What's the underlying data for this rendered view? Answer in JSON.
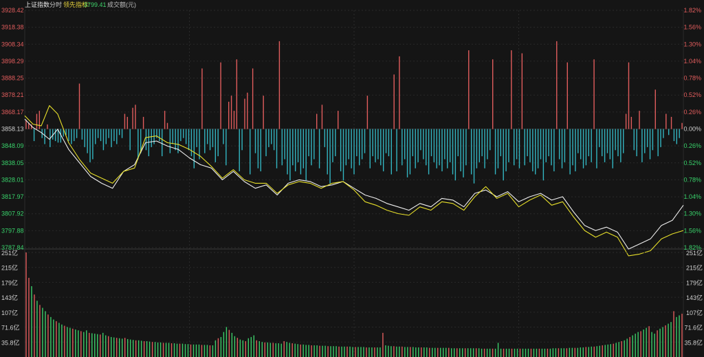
{
  "header": {
    "title": "上证指数",
    "mode": "分时",
    "lead_label": "领先指标:",
    "lead_value": "3799.41",
    "volume_label": "成交额(元)"
  },
  "colors": {
    "background": "#151515",
    "grid": "#2a2a2a",
    "up": "#e25d5d",
    "down": "#33b6c2",
    "index_line": "#f0f0f0",
    "lead_line": "#e8e02a",
    "up_label": "#e25d5d",
    "down_label": "#39d36b"
  },
  "chart_data": [
    {
      "type": "line",
      "name": "price",
      "y_left_ticks": [
        "3928.42",
        "3918.38",
        "3908.34",
        "3898.29",
        "3888.25",
        "3878.21",
        "3868.17",
        "3858.13",
        "3848.09",
        "3838.05",
        "3828.01",
        "3817.97",
        "3807.92",
        "3797.88",
        "3787.84"
      ],
      "y_right_ticks": [
        "1.82%",
        "1.56%",
        "1.30%",
        "1.04%",
        "0.78%",
        "0.52%",
        "0.26%",
        "0.00%",
        "0.26%",
        "0.52%",
        "0.78%",
        "1.04%",
        "1.30%",
        "1.56%",
        "1.82%"
      ],
      "ylim": [
        3787.84,
        3928.42
      ],
      "baseline": 3858.13,
      "series": [
        {
          "key": "index",
          "x": [
            0,
            3,
            6,
            9,
            12,
            16,
            20,
            24,
            28,
            32,
            36,
            40,
            44,
            48,
            52,
            56,
            60,
            64,
            68,
            72,
            76,
            80,
            84,
            88,
            92,
            96,
            100,
            104,
            108,
            112,
            116,
            120,
            124,
            128,
            132,
            136,
            140,
            144,
            148,
            152,
            156,
            160,
            164,
            168,
            172,
            176,
            180,
            184,
            188,
            192,
            196,
            200,
            204,
            208,
            212,
            216,
            220,
            224,
            228,
            232,
            236,
            240
          ],
          "values": [
            3864,
            3859,
            3856,
            3852,
            3858,
            3846,
            3838,
            3830,
            3826,
            3823,
            3833,
            3837,
            3850,
            3851,
            3848,
            3846,
            3841,
            3837,
            3835,
            3828,
            3833,
            3827,
            3823,
            3825,
            3819,
            3826,
            3828,
            3827,
            3824,
            3825,
            3827,
            3823,
            3819,
            3817,
            3814,
            3812,
            3810,
            3814,
            3812,
            3817,
            3816,
            3812,
            3820,
            3822,
            3818,
            3821,
            3815,
            3818,
            3820,
            3816,
            3818,
            3809,
            3801,
            3798,
            3800,
            3797,
            3787,
            3790,
            3793,
            3801,
            3804,
            3813
          ]
        },
        {
          "key": "lead",
          "x": [
            0,
            3,
            6,
            9,
            12,
            16,
            20,
            24,
            28,
            32,
            36,
            40,
            44,
            48,
            52,
            56,
            60,
            64,
            68,
            72,
            76,
            80,
            84,
            88,
            92,
            96,
            100,
            104,
            108,
            112,
            116,
            120,
            124,
            128,
            132,
            136,
            140,
            144,
            148,
            152,
            156,
            160,
            164,
            168,
            172,
            176,
            180,
            184,
            188,
            192,
            196,
            200,
            204,
            208,
            212,
            216,
            220,
            224,
            228,
            232,
            236,
            240
          ],
          "values": [
            3866,
            3861,
            3860,
            3872,
            3867,
            3850,
            3840,
            3832,
            3829,
            3826,
            3833,
            3835,
            3853,
            3854,
            3850,
            3849,
            3846,
            3842,
            3836,
            3829,
            3834,
            3828,
            3826,
            3826,
            3820,
            3825,
            3827,
            3826,
            3823,
            3826,
            3827,
            3822,
            3815,
            3813,
            3810,
            3808,
            3807,
            3812,
            3810,
            3815,
            3814,
            3810,
            3818,
            3824,
            3817,
            3820,
            3812,
            3816,
            3819,
            3813,
            3815,
            3806,
            3798,
            3794,
            3797,
            3794,
            3783,
            3784,
            3786,
            3793,
            3796,
            3798
          ]
        }
      ],
      "bars": [
        6,
        4,
        3,
        -8,
        10,
        12,
        -6,
        -10,
        3,
        -12,
        -7,
        -8,
        -9,
        -9,
        -5,
        -4,
        -8,
        -10,
        -8,
        -6,
        -11,
        -7,
        -12,
        -16,
        -22,
        -20,
        -10,
        -6,
        -8,
        -14,
        -10,
        -6,
        -12,
        -8,
        -10,
        -4,
        -6,
        10,
        8,
        -14,
        14,
        16,
        -20,
        -16,
        8,
        -14,
        -18,
        -12,
        -10,
        -6,
        -8,
        -18,
        12,
        4,
        -16,
        -10,
        -14,
        -16,
        -8,
        -6,
        -10,
        -14,
        -18,
        -26,
        -12,
        -20,
        -22,
        -16,
        -10,
        -14,
        -12,
        -22,
        -18,
        -14,
        -10,
        -24,
        18,
        22,
        12,
        -24,
        -28,
        -14,
        20,
        24,
        -30,
        -18,
        -16,
        -26,
        -28,
        22,
        -18,
        -12,
        -10,
        -14,
        -26,
        -16,
        -24,
        -20,
        -30,
        -34,
        -24,
        -28,
        -22,
        -30,
        -26,
        -34,
        -18,
        -24,
        -20,
        10,
        -26,
        16,
        -12,
        -30,
        -36,
        -22,
        -18,
        12,
        -28,
        -34,
        -24,
        -20,
        -26,
        -30,
        -18,
        -24,
        -20,
        -16,
        22,
        -26,
        -18,
        -22,
        -20,
        -24,
        -28,
        -16,
        -18,
        -30,
        36,
        -28,
        -22,
        -24,
        -20,
        -32,
        -30,
        -18,
        -26,
        -22,
        -14,
        -20,
        -24,
        -30,
        -18,
        -22,
        -26,
        -24,
        -28,
        -20,
        -26,
        -22,
        -30,
        -34,
        -18,
        -28,
        -32,
        -24,
        -40,
        -30,
        -36,
        -26,
        -22,
        -18,
        -26,
        -20,
        -14,
        -22,
        -30,
        -26,
        -18,
        -34,
        -28,
        -22,
        -30,
        -24,
        -20,
        -26,
        -32,
        -24,
        -18,
        -22,
        -28,
        -30,
        -26,
        -20,
        -34,
        -22,
        -18,
        -24,
        -28,
        -16,
        -20,
        -26,
        -22,
        -18,
        -30,
        -24,
        -28,
        -16,
        -20,
        -26,
        -24,
        -18,
        -22,
        -20,
        -26,
        -12,
        -18,
        -22,
        -16,
        -20,
        -26,
        -14,
        -18,
        -22,
        -16,
        10,
        -20,
        8,
        -14,
        -18,
        12,
        -22,
        -16,
        -12,
        -20,
        -14,
        8,
        -18,
        -12,
        -6,
        10,
        -4,
        8,
        -8,
        -10,
        -6,
        4
      ],
      "bar_overrides": {
        "up_peaks": [
          [
            20,
            30
          ],
          [
            66,
            40
          ],
          [
            73,
            44
          ],
          [
            79,
            46
          ],
          [
            85,
            40
          ],
          [
            95,
            58
          ],
          [
            140,
            48
          ],
          [
            166,
            52
          ],
          [
            175,
            46
          ],
          [
            182,
            52
          ],
          [
            186,
            50
          ],
          [
            199,
            58
          ],
          [
            203,
            44
          ],
          [
            213,
            46
          ],
          [
            226,
            44
          ],
          [
            236,
            26
          ]
        ]
      }
    },
    {
      "type": "bar",
      "name": "volume",
      "y_ticks": [
        "251亿",
        "215亿",
        "179亿",
        "143亿",
        "107亿",
        "71.6亿",
        "35.8亿"
      ],
      "ylim": [
        0,
        251
      ],
      "values": [
        251,
        190,
        170,
        150,
        135,
        125,
        118,
        110,
        102,
        96,
        90,
        86,
        82,
        78,
        75,
        72,
        70,
        68,
        66,
        64,
        62,
        60,
        64,
        58,
        57,
        56,
        55,
        54,
        58,
        52,
        50,
        48,
        47,
        46,
        45,
        44,
        46,
        43,
        42,
        41,
        40,
        40,
        39,
        38,
        38,
        37,
        36,
        36,
        35,
        35,
        34,
        34,
        34,
        33,
        33,
        32,
        32,
        32,
        31,
        31,
        30,
        30,
        30,
        30,
        29,
        29,
        29,
        28,
        28,
        40,
        45,
        48,
        60,
        72,
        65,
        58,
        50,
        46,
        42,
        40,
        38,
        45,
        48,
        52,
        40,
        38,
        36,
        35,
        35,
        34,
        34,
        33,
        33,
        32,
        38,
        36,
        34,
        33,
        32,
        31,
        30,
        30,
        29,
        29,
        28,
        28,
        28,
        27,
        27,
        27,
        26,
        26,
        26,
        26,
        25,
        25,
        25,
        25,
        25,
        24,
        24,
        24,
        24,
        24,
        23,
        23,
        23,
        23,
        23,
        23,
        58,
        28,
        27,
        26,
        26,
        25,
        25,
        25,
        24,
        24,
        24,
        24,
        23,
        23,
        23,
        23,
        23,
        22,
        22,
        22,
        22,
        22,
        22,
        22,
        22,
        21,
        21,
        21,
        21,
        21,
        21,
        21,
        21,
        21,
        21,
        21,
        20,
        20,
        20,
        20,
        20,
        20,
        34,
        20,
        20,
        20,
        20,
        20,
        20,
        20,
        20,
        20,
        20,
        20,
        20,
        20,
        20,
        20,
        20,
        20,
        20,
        20,
        21,
        21,
        21,
        21,
        21,
        21,
        22,
        22,
        22,
        22,
        23,
        23,
        24,
        24,
        25,
        25,
        26,
        27,
        28,
        29,
        30,
        31,
        32,
        34,
        36,
        38,
        40,
        44,
        48,
        52,
        56,
        60,
        62,
        66,
        70,
        74,
        60,
        56,
        64,
        68,
        72,
        76,
        80,
        84,
        110,
        96,
        100,
        104
      ],
      "colors_up": [
        0,
        1,
        3,
        5,
        8,
        11,
        14,
        17,
        20,
        23,
        27,
        30,
        33,
        36,
        40,
        43,
        46,
        50,
        53,
        56,
        60,
        64,
        67,
        70,
        74,
        77,
        80,
        84,
        87,
        90,
        94,
        97,
        100,
        104,
        107,
        110,
        114,
        117,
        120,
        124,
        127,
        130,
        134,
        137,
        140,
        144,
        147,
        150,
        154,
        157,
        160,
        164,
        167,
        170,
        174,
        177,
        180,
        184,
        187,
        190,
        194,
        197,
        200,
        204,
        207,
        210,
        214,
        217,
        220,
        224,
        227,
        230,
        233,
        236,
        239,
        241
      ]
    }
  ]
}
